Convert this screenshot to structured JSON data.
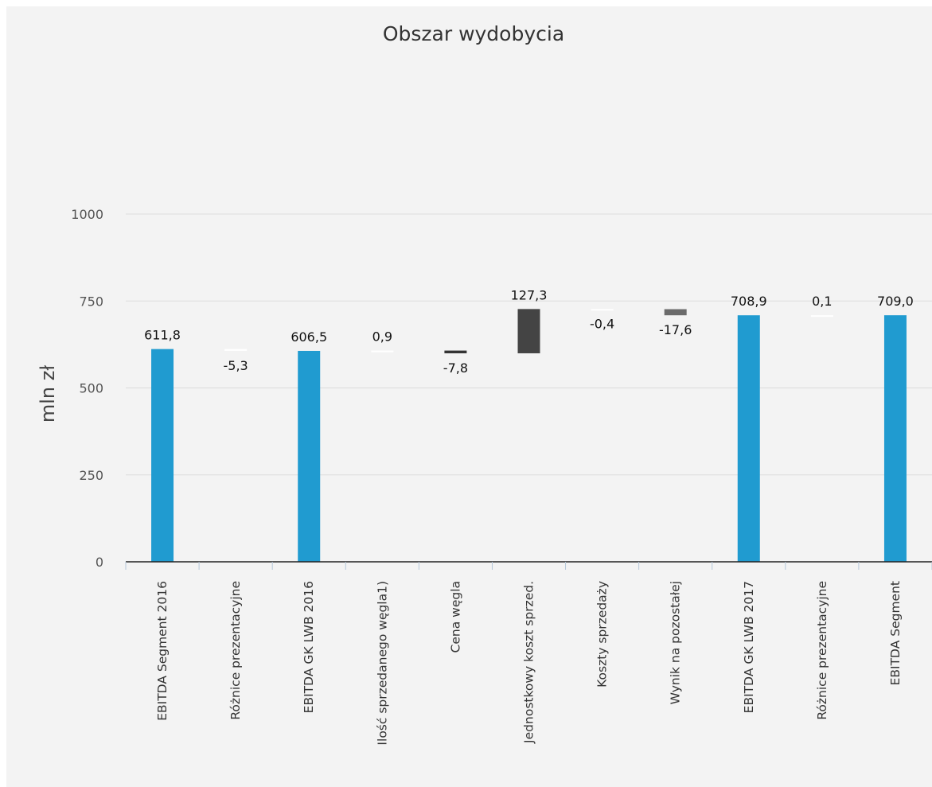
{
  "chart_data": {
    "type": "bar",
    "subtype": "waterfall",
    "title": "Obszar wydobycia",
    "xlabel": "",
    "ylabel": "mln zł",
    "ylim": [
      0,
      1000
    ],
    "yticks": [
      0,
      250,
      500,
      750,
      1000
    ],
    "ytick_labels": [
      "0",
      "250",
      "500",
      "750",
      "1000"
    ],
    "grid": true,
    "legend": "none",
    "categories": [
      "EBITDA Segment 2016",
      "Różnice prezentacyjne",
      "EBITDA GK LWB 2016",
      "Ilość sprzedanego węgla1)",
      "Cena węgla",
      "Jednostkowy koszt sprzed.",
      "Koszty sprzedaży",
      "Wynik na pozostałej",
      "EBITDA GK LWB 2017",
      "Różnice prezentacyjne",
      "EBITDA Segment"
    ],
    "values": [
      611.8,
      -5.3,
      606.5,
      0.9,
      -7.8,
      127.3,
      -0.4,
      -17.6,
      708.9,
      0.1,
      709.0
    ],
    "value_labels": [
      "611,8",
      "-5,3",
      "606,5",
      "0,9",
      "-7,8",
      "127,3",
      "-0,4",
      "-17,6",
      "708,9",
      "0,1",
      "709,0"
    ],
    "kinds": [
      "total",
      "delta",
      "total",
      "delta",
      "delta",
      "delta",
      "delta",
      "delta",
      "total",
      "delta",
      "total"
    ],
    "colors": {
      "total": "#209bd0",
      "increase": "#ffffff",
      "decrease": "#ffffff",
      "highlight_dark": "#444444",
      "highlight_mid": "#6b6b6b",
      "panel_bg": "#f3f3f3",
      "grid": "#dcdcdc",
      "axis": "#222222"
    },
    "bar_color_overrides": {
      "4": "#333333",
      "5": "#444444",
      "7": "#6b6b6b"
    }
  }
}
